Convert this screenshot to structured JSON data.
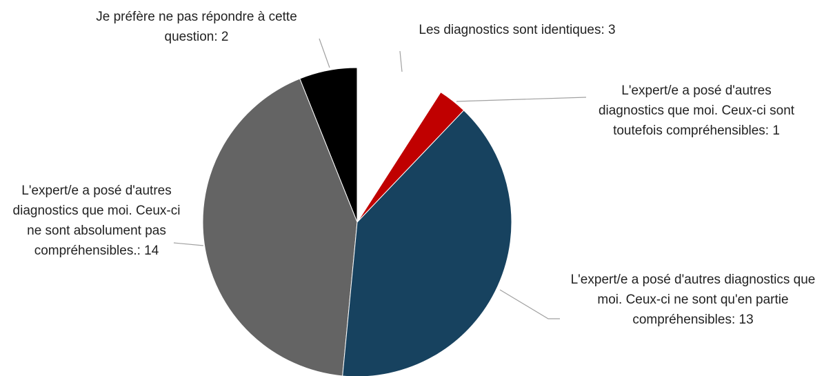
{
  "chart_data": {
    "type": "pie",
    "categories": [
      "Les diagnostics sont identiques: 3",
      "L'expert/e a posé d'autres diagnostics que moi. Ceux-ci sont toutefois compréhensibles: 1",
      "L'expert/e a posé d'autres diagnostics que moi. Ceux-ci ne sont qu'en partie compréhensibles: 13",
      "L'expert/e a posé d'autres diagnostics que moi. Ceux-ci ne sont absolument pas compréhensibles.: 14",
      "Je préfère ne pas répondre à cette question: 2"
    ],
    "values": [
      3,
      1,
      13,
      14,
      2
    ],
    "colors": [
      "#ffffff",
      "#c00000",
      "#17425f",
      "#646464",
      "#000000"
    ]
  }
}
